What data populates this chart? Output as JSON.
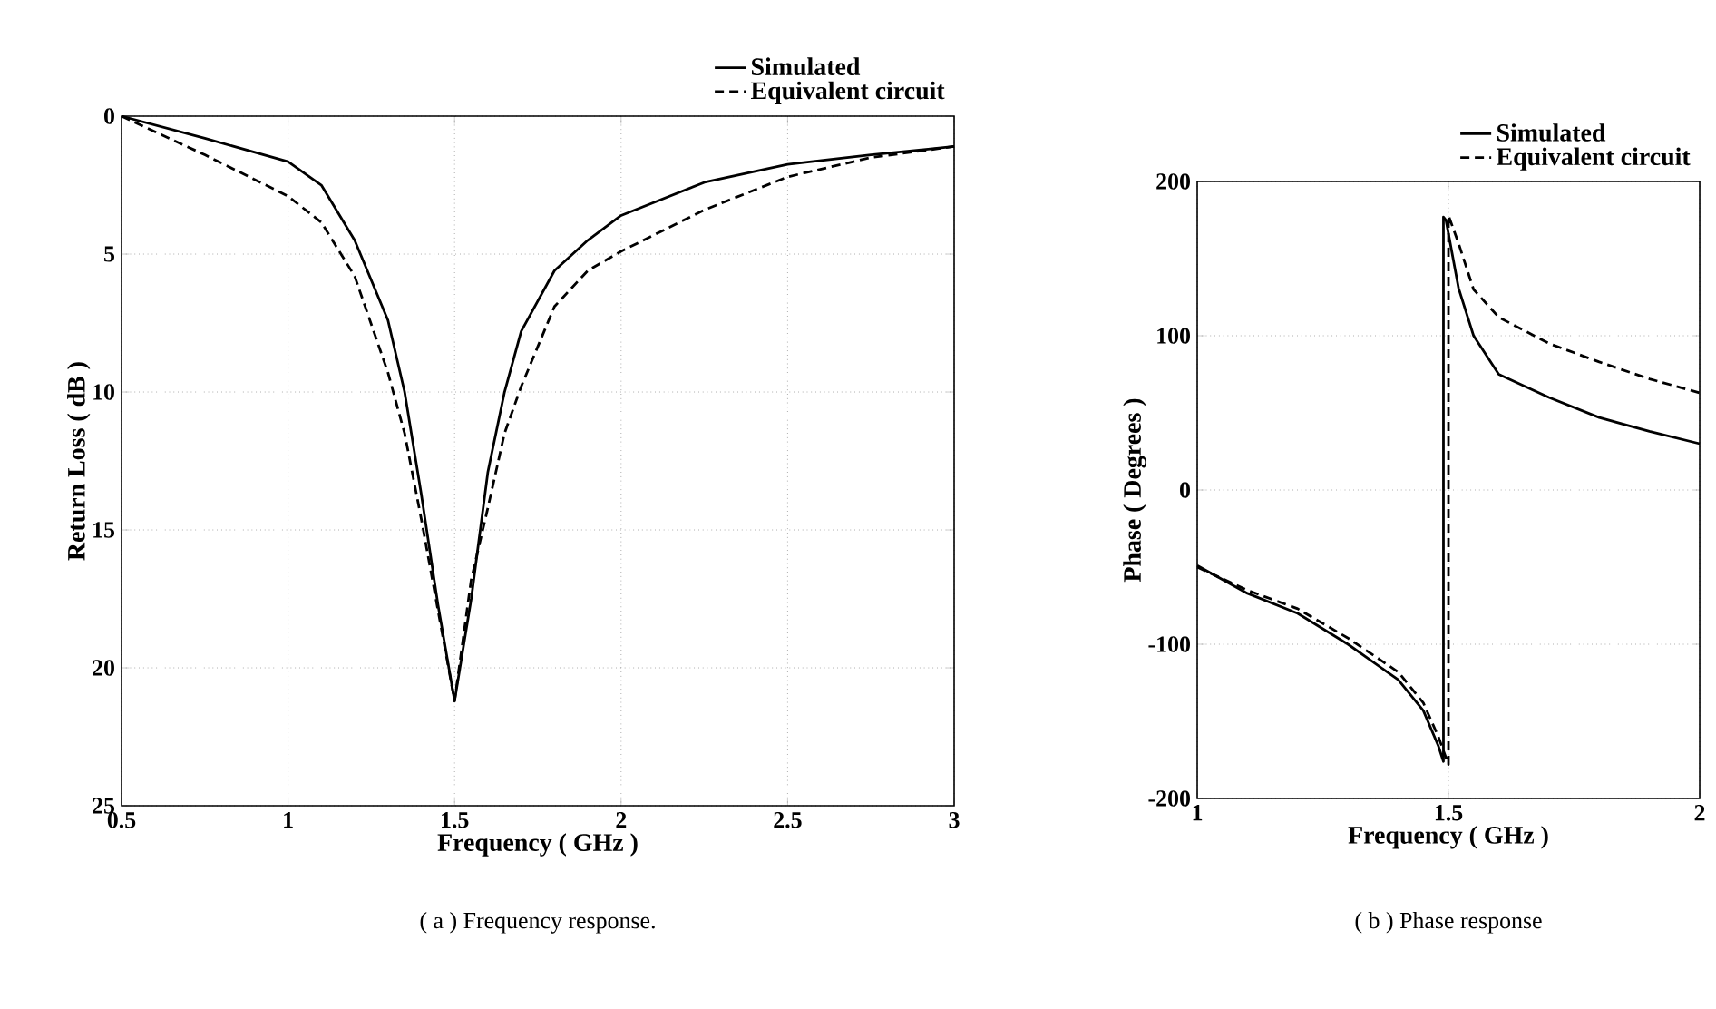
{
  "chart_data": [
    {
      "type": "line",
      "xlabel": "Frequency ( GHz )",
      "ylabel": "Return Loss ( dB )",
      "xlim": [
        0.5,
        3
      ],
      "ylim": [
        25,
        0
      ],
      "xticks": [
        0.5,
        1,
        1.5,
        2,
        2.5,
        3
      ],
      "yticks": [
        0,
        5,
        10,
        15,
        20,
        25
      ],
      "grid": true,
      "legend": "top right",
      "marker": "none",
      "annotations": [
        "( a ) Frequency response."
      ],
      "series": [
        {
          "name": "Simulated",
          "color": "#000000",
          "line_style": "solid",
          "x": [
            0.5,
            0.75,
            1,
            1.1,
            1.2,
            1.3,
            1.35,
            1.4,
            1.45,
            1.5,
            1.55,
            1.6,
            1.65,
            1.7,
            1.8,
            1.9,
            2,
            2.25,
            2.5,
            2.75,
            3
          ],
          "values": [
            0,
            0.8,
            1.65,
            2.5,
            4.5,
            7.4,
            10,
            13.7,
            17.7,
            21.2,
            17.5,
            12.9,
            10,
            7.8,
            5.6,
            4.5,
            3.6,
            2.4,
            1.75,
            1.4,
            1.1
          ]
        },
        {
          "name": "Equivalent  circuit",
          "color": "#000000",
          "line_style": "dashed",
          "x": [
            0.5,
            0.75,
            1,
            1.1,
            1.2,
            1.3,
            1.35,
            1.4,
            1.45,
            1.5,
            1.55,
            1.6,
            1.65,
            1.7,
            1.8,
            1.9,
            2,
            2.25,
            2.5,
            2.75,
            3
          ],
          "values": [
            0,
            1.4,
            2.9,
            3.85,
            5.8,
            9.3,
            11.5,
            14.6,
            17.9,
            21.2,
            16.8,
            14.2,
            11.5,
            9.8,
            6.9,
            5.6,
            4.9,
            3.4,
            2.2,
            1.5,
            1.1
          ]
        }
      ]
    },
    {
      "type": "line",
      "xlabel": "Frequency ( GHz )",
      "ylabel": "Phase ( Degrees )",
      "xlim": [
        1,
        2
      ],
      "ylim": [
        -200,
        200
      ],
      "xticks": [
        1,
        1.5,
        2
      ],
      "yticks": [
        -200,
        -100,
        0,
        100,
        200
      ],
      "grid": true,
      "legend": "top right",
      "marker": "none",
      "annotations": [
        "( b ) Phase response"
      ],
      "series": [
        {
          "name": "Simulated",
          "color": "#000000",
          "line_style": "solid",
          "x": [
            1,
            1.1,
            1.2,
            1.3,
            1.4,
            1.45,
            1.48,
            1.49,
            1.49,
            1.495,
            1.52,
            1.55,
            1.6,
            1.7,
            1.8,
            1.9,
            2
          ],
          "values": [
            -49,
            -67,
            -80,
            -100,
            -123,
            -143,
            -166,
            -176,
            177,
            175,
            131,
            100,
            75,
            60,
            47,
            38,
            30
          ]
        },
        {
          "name": "Equivalent  circuit",
          "color": "#000000",
          "line_style": "dashed",
          "x": [
            1,
            1.1,
            1.2,
            1.3,
            1.4,
            1.45,
            1.48,
            1.5,
            1.5,
            1.52,
            1.55,
            1.6,
            1.7,
            1.8,
            1.9,
            2
          ],
          "values": [
            -50,
            -65,
            -77,
            -96,
            -118,
            -138,
            -160,
            -178,
            178,
            160,
            130,
            112,
            95,
            83,
            72,
            63
          ]
        }
      ]
    }
  ]
}
